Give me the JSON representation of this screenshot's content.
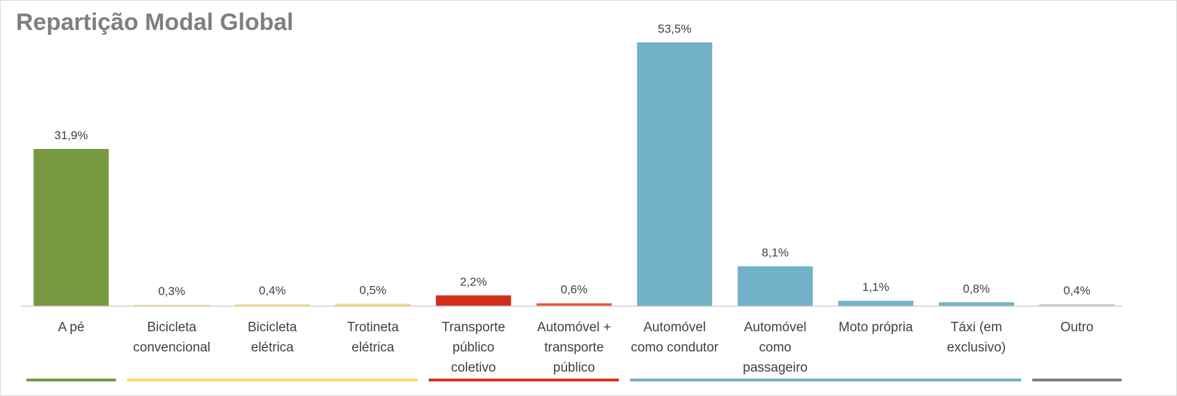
{
  "chart_data": {
    "type": "bar",
    "title": "Repartição Modal Global",
    "categories": [
      "A pé",
      "Bicicleta\nconvencional",
      "Bicicleta\nelétrica",
      "Trotineta\nelétrica",
      "Transporte\npúblico\ncoletivo",
      "Automóvel +\ntransporte\npúblico",
      "Automóvel\ncomo condutor",
      "Automóvel\ncomo\npassageiro",
      "Moto própria",
      "Táxi (em\nexclusivo)",
      "Outro"
    ],
    "values": [
      31.9,
      0.3,
      0.4,
      0.5,
      2.2,
      0.6,
      53.5,
      8.1,
      1.1,
      0.8,
      0.4
    ],
    "value_labels": [
      "31,9%",
      "0,3%",
      "0,4%",
      "0,5%",
      "2,2%",
      "0,6%",
      "53,5%",
      "8,1%",
      "1,1%",
      "0,8%",
      "0,4%"
    ],
    "colors": [
      "#77993f",
      "#f3dc8c",
      "#f3dc8c",
      "#f5d77a",
      "#d42e1a",
      "#e8553f",
      "#72b1c8",
      "#72b1c8",
      "#72b1c8",
      "#72b1c8",
      "#cbc3d9"
    ],
    "group_colors": [
      "#77993f",
      "#fbd66d",
      "#fbd66d",
      "#fbd66d",
      "#d42e1a",
      "#d42e1a",
      "#72b1c8",
      "#72b1c8",
      "#72b1c8",
      "#72b1c8",
      "#7f7f7f"
    ]
  }
}
